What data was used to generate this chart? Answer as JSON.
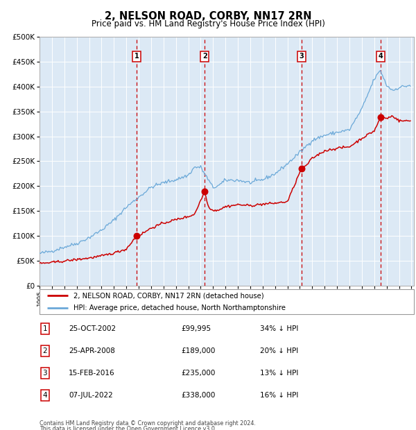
{
  "title": "2, NELSON ROAD, CORBY, NN17 2RN",
  "subtitle": "Price paid vs. HM Land Registry's House Price Index (HPI)",
  "legend_label_red": "2, NELSON ROAD, CORBY, NN17 2RN (detached house)",
  "legend_label_blue": "HPI: Average price, detached house, North Northamptonshire",
  "footer_line1": "Contains HM Land Registry data © Crown copyright and database right 2024.",
  "footer_line2": "This data is licensed under the Open Government Licence v3.0.",
  "table": [
    {
      "num": "1",
      "date": "25-OCT-2002",
      "price": "£99,995",
      "hpi": "34% ↓ HPI"
    },
    {
      "num": "2",
      "date": "25-APR-2008",
      "price": "£189,000",
      "hpi": "20% ↓ HPI"
    },
    {
      "num": "3",
      "date": "15-FEB-2016",
      "price": "£235,000",
      "hpi": "13% ↓ HPI"
    },
    {
      "num": "4",
      "date": "07-JUL-2022",
      "price": "£338,000",
      "hpi": "16% ↓ HPI"
    }
  ],
  "sale_dates_dec": [
    2002.82,
    2008.32,
    2016.12,
    2022.52
  ],
  "sale_prices": [
    99995,
    189000,
    235000,
    338000
  ],
  "ylim": [
    0,
    500000
  ],
  "yticks": [
    0,
    50000,
    100000,
    150000,
    200000,
    250000,
    300000,
    350000,
    400000,
    450000,
    500000
  ],
  "plot_bg": "#dce9f5",
  "grid_color": "#ffffff",
  "red_color": "#cc0000",
  "blue_color": "#6aa8d8",
  "title_fontsize": 10.5,
  "subtitle_fontsize": 8.5
}
